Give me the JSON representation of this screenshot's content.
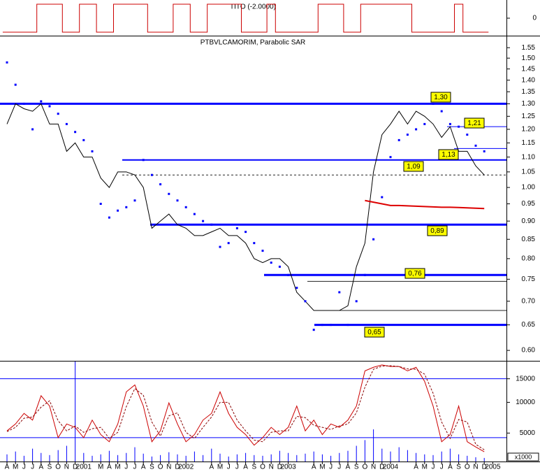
{
  "chart_data": [
    {
      "type": "line",
      "title": "TITO (-2.0000)",
      "ylim": [
        -1.2,
        1.2
      ],
      "yticks": [
        0
      ],
      "series": [
        {
          "color": "#cc0000",
          "style": "step",
          "values": [
            -1,
            -1,
            -1,
            -1,
            1,
            1,
            1,
            -1,
            -1,
            1,
            1,
            -1,
            -1,
            1,
            1,
            1,
            1,
            -1,
            -1,
            -1,
            1,
            1,
            -1,
            -1,
            1,
            1,
            1,
            1,
            -1,
            -1,
            -1,
            1,
            -1,
            -1,
            -1,
            -1,
            -1,
            1,
            1,
            1,
            -1,
            -1,
            1,
            1,
            1,
            1,
            1,
            1,
            -1,
            -1,
            -1,
            -1,
            -1,
            1,
            -1,
            -1,
            -1,
            null
          ]
        }
      ]
    },
    {
      "type": "line",
      "title": "PTBVLCAMORIM, Parabolic SAR",
      "log": true,
      "ylim": [
        0.582,
        1.606
      ],
      "yticks": [
        {
          "value": 0.6,
          "label": "0.60"
        },
        0.65,
        {
          "value": 0.7,
          "label": "0.70"
        },
        0.75,
        {
          "value": 0.8,
          "label": "0.80"
        },
        0.85,
        {
          "value": 0.9,
          "label": "0.90"
        },
        0.95,
        {
          "value": 1.0,
          "label": "1.00"
        },
        1.05,
        {
          "value": 1.1,
          "label": "1.10"
        },
        1.15,
        {
          "value": 1.2,
          "label": "1.20"
        },
        1.25,
        {
          "value": 1.3,
          "label": "1.30"
        },
        1.35,
        {
          "value": 1.4,
          "label": "1.40"
        },
        1.45,
        {
          "value": 1.5,
          "label": "1.50"
        },
        1.55
      ],
      "level_color": "#0000ff",
      "levels": [
        {
          "value": 1.3,
          "label": "1,30"
        },
        {
          "value": 1.21,
          "label": "1,21"
        },
        {
          "value": 1.13,
          "label": "1,13"
        },
        {
          "value": 1.09,
          "label": "1,09"
        },
        {
          "value": 0.89,
          "label": "0,89"
        },
        {
          "value": 0.76,
          "label": "0,76"
        },
        {
          "value": 0.65,
          "label": "0,65"
        }
      ],
      "guides": [
        1.04,
        0.745,
        0.68
      ],
      "series": [
        {
          "color": "#000000",
          "style": "line",
          "values": [
            1.22,
            1.3,
            1.28,
            1.27,
            1.3,
            1.22,
            1.22,
            1.12,
            1.15,
            1.1,
            1.1,
            1.03,
            1.0,
            1.05,
            1.05,
            1.04,
            1.0,
            0.88,
            0.9,
            0.92,
            0.89,
            0.88,
            0.86,
            0.86,
            0.87,
            0.88,
            0.86,
            0.86,
            0.84,
            0.8,
            0.79,
            0.8,
            0.8,
            0.78,
            0.72,
            0.7,
            0.68,
            0.68,
            0.68,
            0.68,
            0.69,
            0.78,
            0.84,
            1.05,
            1.18,
            1.22,
            1.27,
            1.22,
            1.27,
            1.25,
            1.22,
            1.17,
            1.21,
            1.12,
            1.12,
            1.07,
            1.04,
            null
          ]
        },
        {
          "color": "#0000ff",
          "style": "dots",
          "values": [
            1.48,
            1.38,
            1.3,
            1.2,
            1.31,
            1.29,
            1.26,
            1.22,
            1.19,
            1.16,
            1.12,
            0.95,
            0.91,
            0.93,
            0.94,
            0.96,
            1.09,
            1.04,
            1.01,
            0.98,
            0.96,
            0.94,
            0.92,
            0.9,
            0.89,
            0.83,
            0.84,
            0.88,
            0.87,
            0.84,
            0.82,
            0.79,
            0.78,
            0.76,
            0.73,
            0.7,
            0.64,
            0.65,
            0.65,
            0.72,
            0.65,
            0.7,
            0.76,
            0.85,
            0.97,
            1.1,
            1.16,
            1.18,
            1.2,
            1.22,
            1.3,
            1.27,
            1.22,
            1.21,
            1.18,
            1.14,
            1.12,
            null
          ]
        },
        {
          "color": "#dd0000",
          "style": "line",
          "values": [
            null,
            null,
            null,
            null,
            null,
            null,
            null,
            null,
            null,
            null,
            null,
            null,
            null,
            null,
            null,
            null,
            null,
            null,
            null,
            null,
            null,
            null,
            null,
            null,
            null,
            null,
            null,
            null,
            null,
            null,
            null,
            null,
            null,
            null,
            null,
            null,
            null,
            null,
            null,
            null,
            null,
            null,
            0.96,
            0.955,
            0.95,
            0.945,
            0.945,
            0.944,
            0.943,
            0.942,
            0.941,
            0.94,
            0.94,
            0.939,
            0.938,
            0.937,
            0.936,
            null
          ]
        }
      ]
    },
    {
      "type": "line",
      "scale": "sqrt",
      "ylim": [
        1900,
        19300
      ],
      "yticks": [
        5000,
        10000,
        15000
      ],
      "y2lim": [
        0,
        140
      ],
      "unit_label": "x1000",
      "hlines": [
        15000,
        4400
      ],
      "categories": [
        "A",
        "M",
        "J",
        "J",
        "A",
        "S",
        "O",
        "N",
        "D",
        "2001",
        null,
        "M",
        "A",
        "M",
        "J",
        "J",
        "A",
        "S",
        "O",
        "N",
        "D",
        "2002",
        null,
        null,
        "A",
        "M",
        "J",
        "J",
        "A",
        "S",
        "O",
        "N",
        "D",
        "2003",
        null,
        null,
        "A",
        "M",
        "J",
        "J",
        "A",
        "S",
        "O",
        "N",
        "D",
        "2004",
        null,
        null,
        "A",
        "M",
        "J",
        "J",
        "A",
        "S",
        "O",
        "N",
        "D",
        "2005"
      ],
      "series": [
        {
          "color": "#0000ff",
          "style": "bars",
          "axis": "y2",
          "values": [
            10,
            14,
            8,
            18,
            12,
            9,
            16,
            22,
            140,
            12,
            8,
            10,
            15,
            9,
            12,
            20,
            11,
            7,
            9,
            13,
            10,
            8,
            14,
            9,
            18,
            11,
            7,
            10,
            12,
            9,
            8,
            10,
            15,
            12,
            9,
            11,
            14,
            10,
            8,
            12,
            15,
            22,
            30,
            45,
            18,
            14,
            20,
            16,
            12,
            10,
            9,
            14,
            18,
            10,
            8,
            6,
            5,
            null
          ]
        },
        {
          "color": "#cc0000",
          "style": "line",
          "values": [
            5300,
            6300,
            8000,
            6900,
            11300,
            9300,
            4400,
            6300,
            5800,
            4400,
            6900,
            4800,
            3900,
            6300,
            12100,
            13600,
            9300,
            3900,
            5300,
            9900,
            6300,
            3900,
            4800,
            6900,
            8000,
            12100,
            8000,
            5800,
            4800,
            3500,
            4400,
            5800,
            4800,
            5800,
            9300,
            5300,
            6900,
            4800,
            6300,
            5800,
            6900,
            9300,
            16900,
            17800,
            18400,
            18000,
            18000,
            16900,
            17800,
            14400,
            9300,
            3900,
            4800,
            9300,
            3900,
            3300,
            2800,
            null
          ]
        },
        {
          "color": "#880000",
          "style": "dashed",
          "values": [
            5200,
            5800,
            7200,
            7400,
            9100,
            10300,
            6800,
            5300,
            6000,
            5100,
            5600,
            5800,
            4300,
            5100,
            9200,
            12800,
            11400,
            6600,
            4600,
            7600,
            8100,
            5100,
            4300,
            5800,
            7400,
            10000,
            10000,
            6900,
            5300,
            4100,
            3900,
            5100,
            5300,
            5300,
            7500,
            7300,
            6100,
            5800,
            5500,
            6000,
            6300,
            8100,
            13100,
            17300,
            18100,
            18200,
            18000,
            17400,
            17300,
            16100,
            11800,
            6600,
            4300,
            7000,
            6600,
            3600,
            3000,
            null
          ]
        }
      ]
    }
  ]
}
